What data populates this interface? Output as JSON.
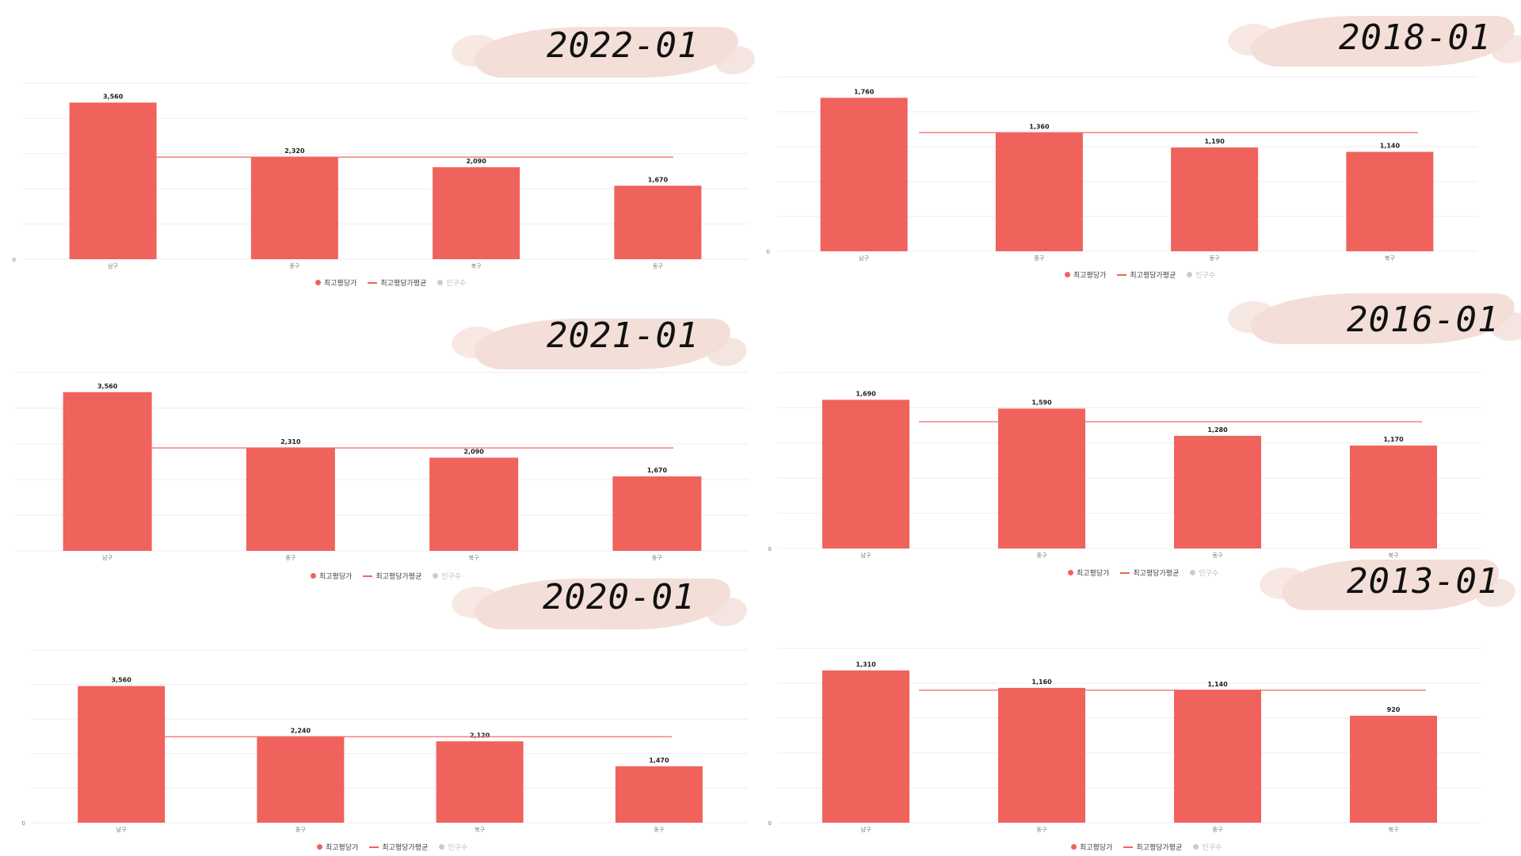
{
  "colors": {
    "bar": "#f0625c",
    "avg_line": "#f0625c",
    "muted": "#cccccc",
    "grid": "#eeeeee"
  },
  "legend": {
    "max_price": "최고평당가",
    "avg_price": "최고평당가평균",
    "population": "인구수"
  },
  "chart_data": [
    {
      "type": "bar",
      "title": "2022-01",
      "categories": [
        "남구",
        "중구",
        "북구",
        "동구"
      ],
      "values": [
        3560,
        2320,
        2090,
        1670
      ],
      "value_labels": [
        "3,560",
        "2,320",
        "2,090",
        "1,670"
      ],
      "average": 2320,
      "ylim": [
        0,
        4000
      ],
      "yticks": [
        "0",
        "",
        "",
        "",
        "",
        ""
      ]
    },
    {
      "type": "bar",
      "title": "2018-01",
      "categories": [
        "남구",
        "중구",
        "동구",
        "북구"
      ],
      "values": [
        1760,
        1360,
        1190,
        1140
      ],
      "value_labels": [
        "1,760",
        "1,360",
        "1,190",
        "1,140"
      ],
      "average": 1360,
      "ylim": [
        0,
        2000
      ],
      "yticks": [
        "0",
        "",
        "",
        "",
        "",
        ""
      ]
    },
    {
      "type": "bar",
      "title": "2021-01",
      "categories": [
        "남구",
        "중구",
        "북구",
        "동구"
      ],
      "values": [
        3560,
        2310,
        2090,
        1670
      ],
      "value_labels": [
        "3,560",
        "2,310",
        "2,090",
        "1,670"
      ],
      "average": 2310,
      "ylim": [
        0,
        4000
      ],
      "yticks": [
        "",
        "",
        "",
        "",
        "",
        ""
      ]
    },
    {
      "type": "bar",
      "title": "2016-01",
      "categories": [
        "남구",
        "중구",
        "동구",
        "북구"
      ],
      "values": [
        1690,
        1590,
        1280,
        1170
      ],
      "value_labels": [
        "1,690",
        "1,590",
        "1,280",
        "1,170"
      ],
      "average": 1440,
      "ylim": [
        0,
        2000
      ],
      "yticks": [
        "0",
        "",
        "",
        "",
        "",
        ""
      ]
    },
    {
      "type": "bar",
      "title": "2020-01",
      "categories": [
        "남구",
        "중구",
        "북구",
        "동구"
      ],
      "values": [
        3560,
        2240,
        2120,
        1470
      ],
      "value_labels": [
        "3,560",
        "2,240",
        "2,120",
        "1,470"
      ],
      "average": 2240,
      "ylim": [
        0,
        4500
      ],
      "yticks": [
        "0",
        "",
        "",
        "",
        "",
        ""
      ]
    },
    {
      "type": "bar",
      "title": "2013-01",
      "categories": [
        "남구",
        "동구",
        "중구",
        "북구"
      ],
      "values": [
        1310,
        1160,
        1140,
        920
      ],
      "value_labels": [
        "1,310",
        "1,160",
        "1,140",
        "920"
      ],
      "average": 1140,
      "ylim": [
        0,
        1500
      ],
      "yticks": [
        "0",
        "",
        "",
        "",
        "",
        ""
      ]
    }
  ]
}
